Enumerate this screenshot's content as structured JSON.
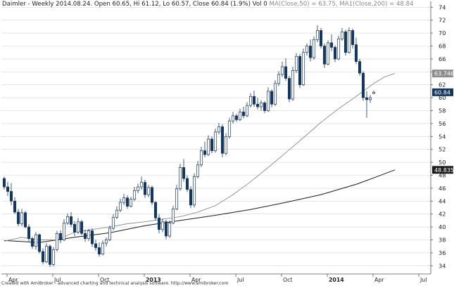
{
  "header": {
    "quote_text": "Daimler - Weekly 2014.08.24. Open 60.65, Hi 61.12, Lo 60.57, Close 60.84 (1.9%) Vol 0 ",
    "ma50_text": "MA(Close,50) = 63.75, ",
    "ma200_text": "MA1(Close,200) = 48.84"
  },
  "footer": {
    "credit": "Created with AmiBroker - advanced charting and technical analysis software. http://www.amibroker.com"
  },
  "colors": {
    "candle_up_fill": "#ffffff",
    "candle_down_fill": "#16365c",
    "candle_outline": "#16365c",
    "ma50": "#8c8c8c",
    "ma200": "#1a1a1a",
    "grid": "#d4d4d4",
    "last_price_tag": "#16365c",
    "ma50_tag": "#8c8c8c",
    "ma200_tag": "#1a1a1a"
  },
  "chart_data": {
    "type": "candlestick",
    "ylim": [
      33,
      75
    ],
    "y_ticks": [
      34,
      36,
      38,
      40,
      42,
      44,
      46,
      48,
      50,
      52,
      54,
      56,
      58,
      60,
      62,
      64,
      66,
      68,
      70,
      72,
      74
    ],
    "x_ticks": [
      {
        "label": "Apr",
        "week": 0
      },
      {
        "label": "Jul",
        "week": 13
      },
      {
        "label": "Oct",
        "week": 26
      },
      {
        "label": "2013",
        "week": 39
      },
      {
        "label": "Apr",
        "week": 52
      },
      {
        "label": "Jul",
        "week": 65
      },
      {
        "label": "Oct",
        "week": 78
      },
      {
        "label": "2014",
        "week": 91
      },
      {
        "label": "Apr",
        "week": 104
      },
      {
        "label": "Jul",
        "week": 117
      }
    ],
    "grid": "horizontal",
    "value_tags": {
      "last_close": "60.84",
      "ma50": "63.746",
      "ma200": "48.8359"
    },
    "ohlc": [
      [
        47.5,
        47.8,
        45.8,
        46.2
      ],
      [
        46.2,
        47.0,
        44.8,
        45.5
      ],
      [
        45.5,
        46.8,
        43.4,
        44.0
      ],
      [
        44.0,
        44.6,
        42.0,
        42.3
      ],
      [
        42.3,
        42.8,
        40.1,
        40.5
      ],
      [
        40.5,
        42.8,
        40.1,
        42.2
      ],
      [
        42.2,
        42.5,
        39.8,
        40.0
      ],
      [
        40.0,
        40.4,
        37.8,
        38.2
      ],
      [
        38.2,
        38.5,
        36.6,
        37.0
      ],
      [
        37.0,
        39.2,
        36.5,
        38.8
      ],
      [
        38.8,
        39.0,
        35.9,
        36.2
      ],
      [
        36.2,
        36.7,
        34.2,
        34.6
      ],
      [
        34.6,
        37.5,
        34.4,
        37.0
      ],
      [
        37.0,
        37.3,
        33.8,
        34.2
      ],
      [
        34.2,
        36.9,
        33.9,
        36.5
      ],
      [
        36.5,
        39.4,
        36.2,
        39.0
      ],
      [
        39.0,
        39.5,
        37.5,
        38.0
      ],
      [
        38.0,
        41.2,
        37.8,
        40.6
      ],
      [
        40.6,
        42.1,
        40.3,
        41.6
      ],
      [
        41.6,
        42.3,
        40.0,
        40.4
      ],
      [
        40.4,
        40.9,
        38.6,
        39.2
      ],
      [
        39.2,
        41.4,
        38.9,
        40.8
      ],
      [
        40.8,
        41.1,
        38.7,
        39.0
      ],
      [
        39.0,
        39.6,
        37.7,
        38.2
      ],
      [
        38.2,
        39.7,
        37.8,
        39.4
      ],
      [
        39.4,
        39.8,
        36.9,
        37.4
      ],
      [
        37.4,
        38.0,
        36.3,
        36.8
      ],
      [
        36.8,
        37.6,
        35.4,
        35.8
      ],
      [
        35.8,
        37.9,
        35.6,
        37.5
      ],
      [
        37.5,
        38.4,
        37.0,
        38.0
      ],
      [
        38.0,
        40.2,
        37.8,
        39.8
      ],
      [
        39.8,
        42.0,
        39.5,
        41.5
      ],
      [
        41.5,
        43.2,
        41.2,
        42.6
      ],
      [
        42.6,
        44.4,
        42.3,
        43.8
      ],
      [
        43.8,
        45.1,
        43.4,
        44.5
      ],
      [
        44.5,
        44.9,
        42.8,
        43.2
      ],
      [
        43.2,
        44.7,
        43.0,
        44.3
      ],
      [
        44.3,
        46.2,
        44.0,
        45.6
      ],
      [
        45.6,
        46.7,
        45.2,
        46.2
      ],
      [
        46.2,
        47.8,
        45.8,
        46.9
      ],
      [
        46.9,
        47.3,
        44.5,
        45.0
      ],
      [
        45.0,
        46.5,
        44.6,
        46.1
      ],
      [
        46.1,
        46.4,
        43.4,
        43.8
      ],
      [
        43.8,
        44.0,
        41.0,
        41.4
      ],
      [
        41.4,
        42.0,
        39.0,
        39.6
      ],
      [
        39.6,
        41.3,
        39.2,
        40.8
      ],
      [
        40.8,
        41.1,
        38.1,
        38.6
      ],
      [
        38.6,
        41.0,
        38.3,
        40.6
      ],
      [
        40.6,
        43.3,
        40.4,
        42.8
      ],
      [
        42.8,
        46.5,
        42.6,
        45.9
      ],
      [
        45.9,
        49.8,
        45.6,
        49.2
      ],
      [
        49.2,
        50.5,
        47.0,
        47.5
      ],
      [
        47.5,
        48.0,
        45.4,
        45.8
      ],
      [
        45.8,
        46.3,
        42.9,
        43.4
      ],
      [
        43.4,
        48.3,
        43.0,
        47.8
      ],
      [
        47.8,
        50.2,
        47.5,
        49.6
      ],
      [
        49.6,
        52.4,
        49.3,
        51.8
      ],
      [
        51.8,
        53.2,
        50.8,
        51.2
      ],
      [
        51.2,
        54.2,
        51.0,
        53.6
      ],
      [
        53.6,
        54.0,
        51.4,
        51.8
      ],
      [
        51.8,
        55.2,
        51.5,
        54.7
      ],
      [
        54.7,
        56.1,
        54.3,
        55.5
      ],
      [
        55.5,
        55.9,
        50.8,
        51.4
      ],
      [
        51.4,
        54.5,
        51.1,
        54.0
      ],
      [
        54.0,
        56.9,
        53.7,
        56.4
      ],
      [
        56.4,
        57.8,
        56.0,
        57.2
      ],
      [
        57.2,
        57.5,
        56.3,
        56.6
      ],
      [
        56.6,
        58.3,
        56.4,
        57.8
      ],
      [
        57.8,
        58.6,
        56.8,
        57.2
      ],
      [
        57.2,
        59.3,
        57.0,
        58.8
      ],
      [
        58.8,
        60.7,
        58.5,
        60.2
      ],
      [
        60.2,
        61.1,
        58.6,
        59.0
      ],
      [
        59.0,
        60.0,
        58.2,
        58.6
      ],
      [
        58.6,
        59.6,
        58.0,
        59.2
      ],
      [
        59.2,
        59.5,
        57.6,
        58.0
      ],
      [
        58.0,
        61.6,
        57.8,
        61.0
      ],
      [
        61.0,
        61.3,
        58.5,
        59.0
      ],
      [
        59.0,
        62.7,
        58.7,
        62.2
      ],
      [
        62.2,
        64.1,
        61.8,
        63.6
      ],
      [
        63.6,
        65.6,
        63.2,
        64.8
      ],
      [
        64.8,
        66.1,
        62.6,
        63.0
      ],
      [
        63.0,
        63.4,
        59.3,
        59.8
      ],
      [
        59.8,
        64.8,
        59.5,
        64.2
      ],
      [
        64.2,
        66.9,
        63.8,
        66.4
      ],
      [
        66.4,
        66.8,
        61.5,
        62.0
      ],
      [
        62.0,
        67.6,
        61.8,
        67.0
      ],
      [
        67.0,
        68.4,
        66.5,
        68.0
      ],
      [
        68.0,
        69.0,
        65.6,
        66.2
      ],
      [
        66.2,
        69.5,
        65.9,
        69.0
      ],
      [
        69.0,
        71.2,
        68.6,
        70.4
      ],
      [
        70.4,
        70.8,
        67.6,
        68.0
      ],
      [
        68.0,
        68.4,
        64.6,
        65.2
      ],
      [
        65.2,
        68.9,
        65.0,
        68.5
      ],
      [
        68.5,
        69.8,
        67.2,
        67.8
      ],
      [
        67.8,
        68.1,
        65.5,
        66.0
      ],
      [
        66.0,
        69.6,
        65.8,
        69.1
      ],
      [
        69.1,
        70.8,
        68.8,
        70.2
      ],
      [
        70.2,
        70.5,
        66.5,
        67.0
      ],
      [
        67.0,
        70.9,
        66.8,
        70.4
      ],
      [
        70.4,
        70.7,
        67.6,
        68.2
      ],
      [
        68.2,
        69.3,
        65.2,
        65.6
      ],
      [
        65.6,
        66.0,
        63.4,
        63.8
      ],
      [
        63.8,
        64.1,
        59.5,
        60.0
      ],
      [
        60.0,
        61.0,
        56.9,
        59.7
      ],
      [
        59.7,
        60.4,
        59.2,
        60.0
      ],
      [
        60.65,
        61.12,
        60.57,
        60.84
      ]
    ],
    "ma50": [
      [
        0,
        37.8
      ],
      [
        5,
        38.4
      ],
      [
        10,
        38.0
      ],
      [
        15,
        38.0
      ],
      [
        20,
        39.2
      ],
      [
        25,
        39.6
      ],
      [
        30,
        40.0
      ],
      [
        35,
        40.5
      ],
      [
        40,
        40.8
      ],
      [
        45,
        41.2
      ],
      [
        50,
        41.6
      ],
      [
        55,
        42.3
      ],
      [
        60,
        43.3
      ],
      [
        65,
        45.0
      ],
      [
        70,
        47.0
      ],
      [
        75,
        49.2
      ],
      [
        80,
        51.5
      ],
      [
        85,
        53.8
      ],
      [
        90,
        56.2
      ],
      [
        95,
        58.3
      ],
      [
        100,
        60.2
      ],
      [
        105,
        62.2
      ],
      [
        108,
        63.2
      ],
      [
        111,
        63.75
      ]
    ],
    "ma200": [
      [
        0,
        37.9
      ],
      [
        10,
        37.6
      ],
      [
        20,
        38.4
      ],
      [
        30,
        39.1
      ],
      [
        40,
        40.2
      ],
      [
        50,
        41.0
      ],
      [
        60,
        41.8
      ],
      [
        70,
        42.7
      ],
      [
        80,
        43.8
      ],
      [
        90,
        45.0
      ],
      [
        100,
        46.6
      ],
      [
        105,
        47.6
      ],
      [
        111,
        48.84
      ]
    ]
  }
}
